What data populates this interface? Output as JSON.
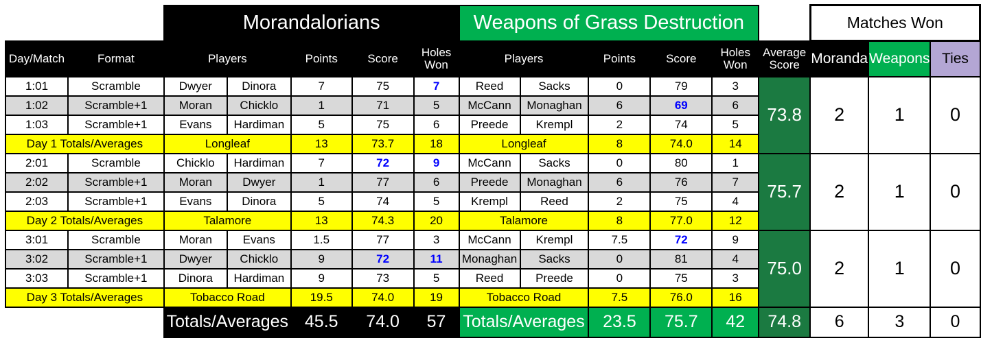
{
  "title_bar": {
    "team1": "Morandalorians",
    "team2": "Weapons of Grass Destruction",
    "matches_won": "Matches Won"
  },
  "headers": {
    "day_match": "Day/Match",
    "format": "Format",
    "players": "Players",
    "points": "Points",
    "score": "Score",
    "holes_won": "Holes Won",
    "average_score": "Average Score",
    "moranda": "Moranda",
    "weapons": "Weapons",
    "ties": "Ties"
  },
  "sections": [
    {
      "rows": [
        {
          "match": "1:01",
          "format": "Scramble",
          "t1a": "Dwyer",
          "t1b": "Dinora",
          "t1pts": "7",
          "t1score": "75",
          "t1holes": "7",
          "t2a": "Reed",
          "t2b": "Sacks",
          "t2pts": "0",
          "t2score": "79",
          "t2holes": "3"
        },
        {
          "match": "1:02",
          "format": "Scramble+1",
          "t1a": "Moran",
          "t1b": "Chicklo",
          "t1pts": "1",
          "t1score": "71",
          "t1holes": "5",
          "t2a": "McCann",
          "t2b": "Monaghan",
          "t2pts": "6",
          "t2score": "69",
          "t2holes": "6"
        },
        {
          "match": "1:03",
          "format": "Scramble+1",
          "t1a": "Evans",
          "t1b": "Hardiman",
          "t1pts": "5",
          "t1score": "75",
          "t1holes": "6",
          "t2a": "Preede",
          "t2b": "Krempl",
          "t2pts": "2",
          "t2score": "74",
          "t2holes": "5"
        }
      ],
      "totals": {
        "label": "Day 1 Totals/Averages",
        "t1course": "Longleaf",
        "t1pts": "13",
        "t1score": "73.7",
        "t1holes": "18",
        "t2course": "Longleaf",
        "t2pts": "8",
        "t2score": "74.0",
        "t2holes": "14"
      },
      "average_score": "73.8",
      "won": {
        "moranda": "2",
        "weapons": "1",
        "ties": "0"
      }
    },
    {
      "rows": [
        {
          "match": "2:01",
          "format": "Scramble",
          "t1a": "Chicklo",
          "t1b": "Hardiman",
          "t1pts": "7",
          "t1score": "72",
          "t1holes": "9",
          "t2a": "McCann",
          "t2b": "Sacks",
          "t2pts": "0",
          "t2score": "80",
          "t2holes": "1"
        },
        {
          "match": "2:02",
          "format": "Scramble+1",
          "t1a": "Moran",
          "t1b": "Dwyer",
          "t1pts": "1",
          "t1score": "77",
          "t1holes": "6",
          "t2a": "Preede",
          "t2b": "Monaghan",
          "t2pts": "6",
          "t2score": "76",
          "t2holes": "7"
        },
        {
          "match": "2:03",
          "format": "Scramble+1",
          "t1a": "Evans",
          "t1b": "Dinora",
          "t1pts": "5",
          "t1score": "74",
          "t1holes": "5",
          "t2a": "Krempl",
          "t2b": "Reed",
          "t2pts": "2",
          "t2score": "75",
          "t2holes": "4"
        }
      ],
      "totals": {
        "label": "Day 2 Totals/Averages",
        "t1course": "Talamore",
        "t1pts": "13",
        "t1score": "74.3",
        "t1holes": "20",
        "t2course": "Talamore",
        "t2pts": "8",
        "t2score": "77.0",
        "t2holes": "12"
      },
      "average_score": "75.7",
      "won": {
        "moranda": "2",
        "weapons": "1",
        "ties": "0"
      }
    },
    {
      "rows": [
        {
          "match": "3:01",
          "format": "Scramble",
          "t1a": "Moran",
          "t1b": "Evans",
          "t1pts": "1.5",
          "t1score": "77",
          "t1holes": "3",
          "t2a": "McCann",
          "t2b": "Krempl",
          "t2pts": "7.5",
          "t2score": "72",
          "t2holes": "9"
        },
        {
          "match": "3:02",
          "format": "Scramble+1",
          "t1a": "Dwyer",
          "t1b": "Chicklo",
          "t1pts": "9",
          "t1score": "72",
          "t1holes": "11",
          "t2a": "Monaghan",
          "t2b": "Sacks",
          "t2pts": "0",
          "t2score": "81",
          "t2holes": "4"
        },
        {
          "match": "3:03",
          "format": "Scramble+1",
          "t1a": "Dinora",
          "t1b": "Hardiman",
          "t1pts": "9",
          "t1score": "73",
          "t1holes": "5",
          "t2a": "Reed",
          "t2b": "Preede",
          "t2pts": "0",
          "t2score": "75",
          "t2holes": "3"
        }
      ],
      "totals": {
        "label": "Day 3 Totals/Averages",
        "t1course": "Tobacco Road",
        "t1pts": "19.5",
        "t1score": "74.0",
        "t1holes": "19",
        "t2course": "Tobacco Road",
        "t2pts": "7.5",
        "t2score": "76.0",
        "t2holes": "16"
      },
      "average_score": "75.0",
      "won": {
        "moranda": "2",
        "weapons": "1",
        "ties": "0"
      }
    }
  ],
  "grand_totals": {
    "t1label": "Totals/Averages",
    "t1pts": "45.5",
    "t1score": "74.0",
    "t1holes": "57",
    "t2label": "Totals/Averages",
    "t2pts": "23.5",
    "t2score": "75.7",
    "t2holes": "42",
    "average_score": "74.8",
    "moranda": "6",
    "weapons": "3",
    "ties": "0"
  },
  "colors": {
    "team_green": "#00B050",
    "dark_green": "#1B7A41",
    "ties_purple": "#B3A6D4",
    "row_gray": "#D9D9D9",
    "totals_yellow": "#FFFF00",
    "highlight_blue": "#0000FF"
  }
}
